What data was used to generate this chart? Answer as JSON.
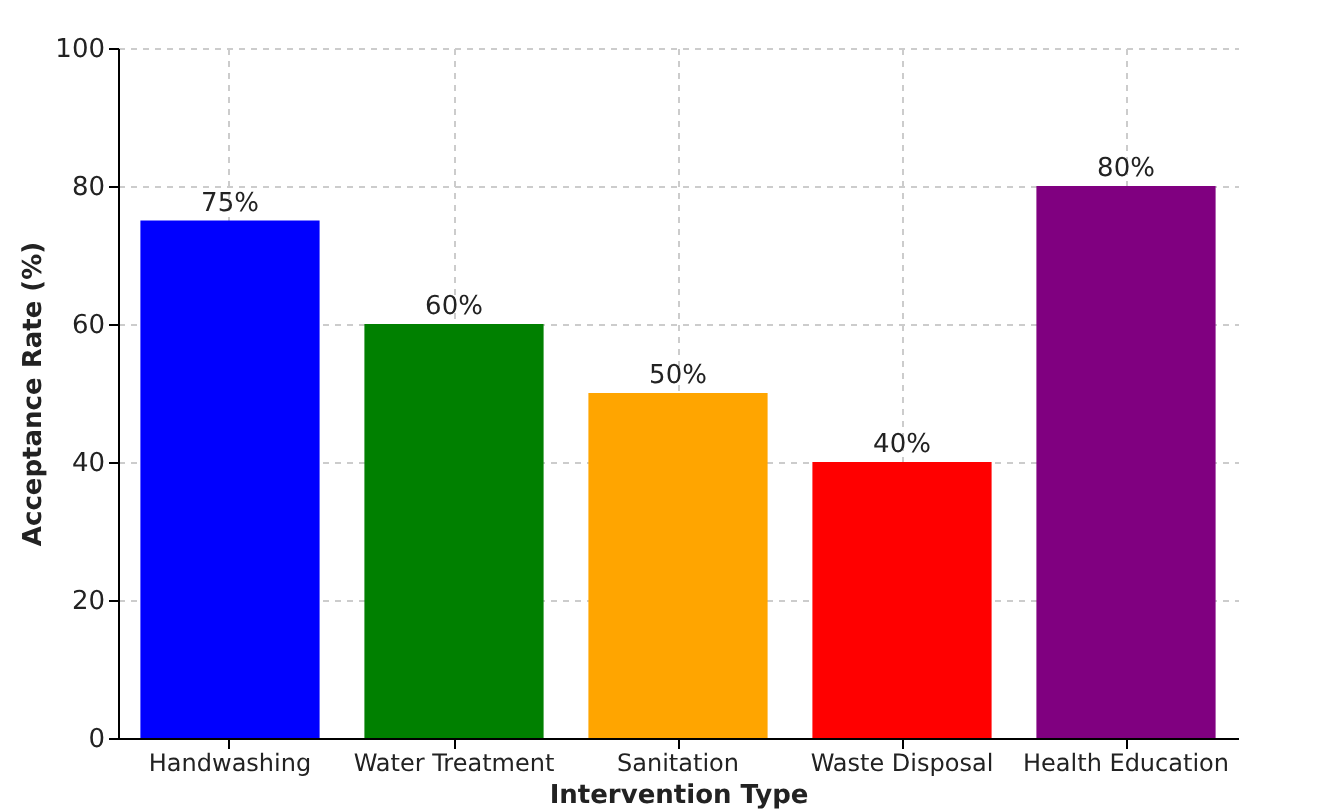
{
  "chart_data": {
    "type": "bar",
    "xlabel": "Intervention Type",
    "ylabel": "Acceptance Rate (%)",
    "categories": [
      "Handwashing",
      "Water Treatment",
      "Sanitation",
      "Waste Disposal",
      "Health Education"
    ],
    "values": [
      75,
      60,
      50,
      40,
      80
    ],
    "colors": [
      "#0000ff",
      "#008000",
      "#ffa500",
      "#ff0000",
      "#800080"
    ],
    "value_labels": [
      "75%",
      "60%",
      "50%",
      "40%",
      "80%"
    ],
    "ylim": [
      0,
      100
    ],
    "yticks": [
      0,
      20,
      40,
      60,
      80,
      100
    ],
    "grid": true
  }
}
